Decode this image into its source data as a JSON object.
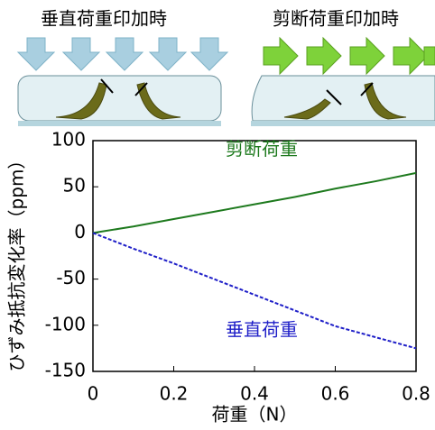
{
  "diagrams": [
    {
      "title": "垂直荷重印加時"
    },
    {
      "title": "剪断荷重印加時"
    }
  ],
  "chart_data": {
    "type": "line",
    "x_label": "荷重（N）",
    "y_label": "ひずみ抵抗変化率（ppm）",
    "x": [
      0,
      0.1,
      0.2,
      0.3,
      0.4,
      0.5,
      0.6,
      0.7,
      0.8
    ],
    "series": [
      {
        "name": "剪断荷重",
        "color": "#1e7a1e",
        "dash": false,
        "values": [
          0,
          7,
          15,
          23,
          31,
          39,
          48,
          56,
          65
        ]
      },
      {
        "name": "垂直荷重",
        "color": "#1f1fc8",
        "dash": true,
        "values": [
          0,
          -17,
          -33,
          -50,
          -67,
          -84,
          -101,
          -113,
          -125
        ]
      }
    ],
    "xlim": [
      0,
      0.8
    ],
    "ylim": [
      -150,
      100
    ],
    "xticks": [
      0,
      0.2,
      0.4,
      0.6,
      0.8
    ],
    "yticks": [
      -150,
      -100,
      -50,
      0,
      50,
      100
    ]
  }
}
